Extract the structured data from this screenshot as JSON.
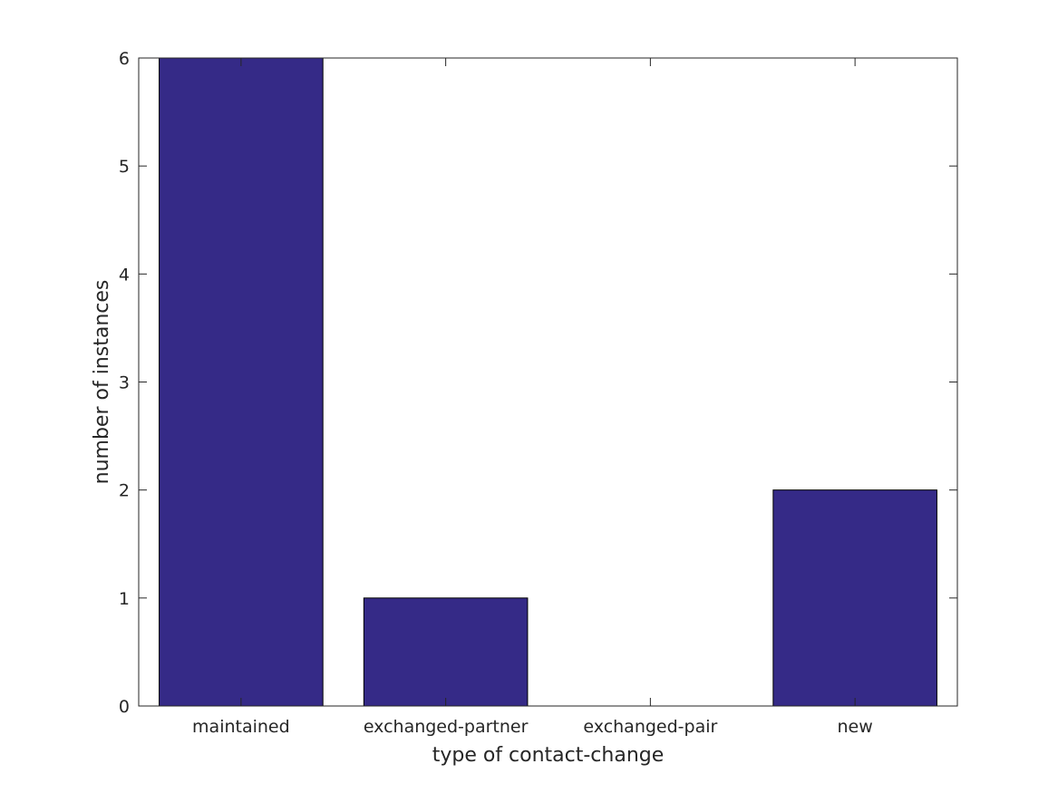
{
  "chart_data": {
    "type": "bar",
    "categories": [
      "maintained",
      "exchanged-partner",
      "exchanged-pair",
      "new"
    ],
    "values": [
      6,
      1,
      0,
      2
    ],
    "title": "",
    "xlabel": "type of contact-change",
    "ylabel": "number of instances",
    "ylim": [
      0,
      6
    ],
    "yticks": [
      0,
      1,
      2,
      3,
      4,
      5,
      6
    ],
    "grid": false,
    "colors": {
      "bar_fill": "#352a87",
      "bar_edge": "#000000",
      "axis": "#262626",
      "background": "#ffffff"
    }
  }
}
